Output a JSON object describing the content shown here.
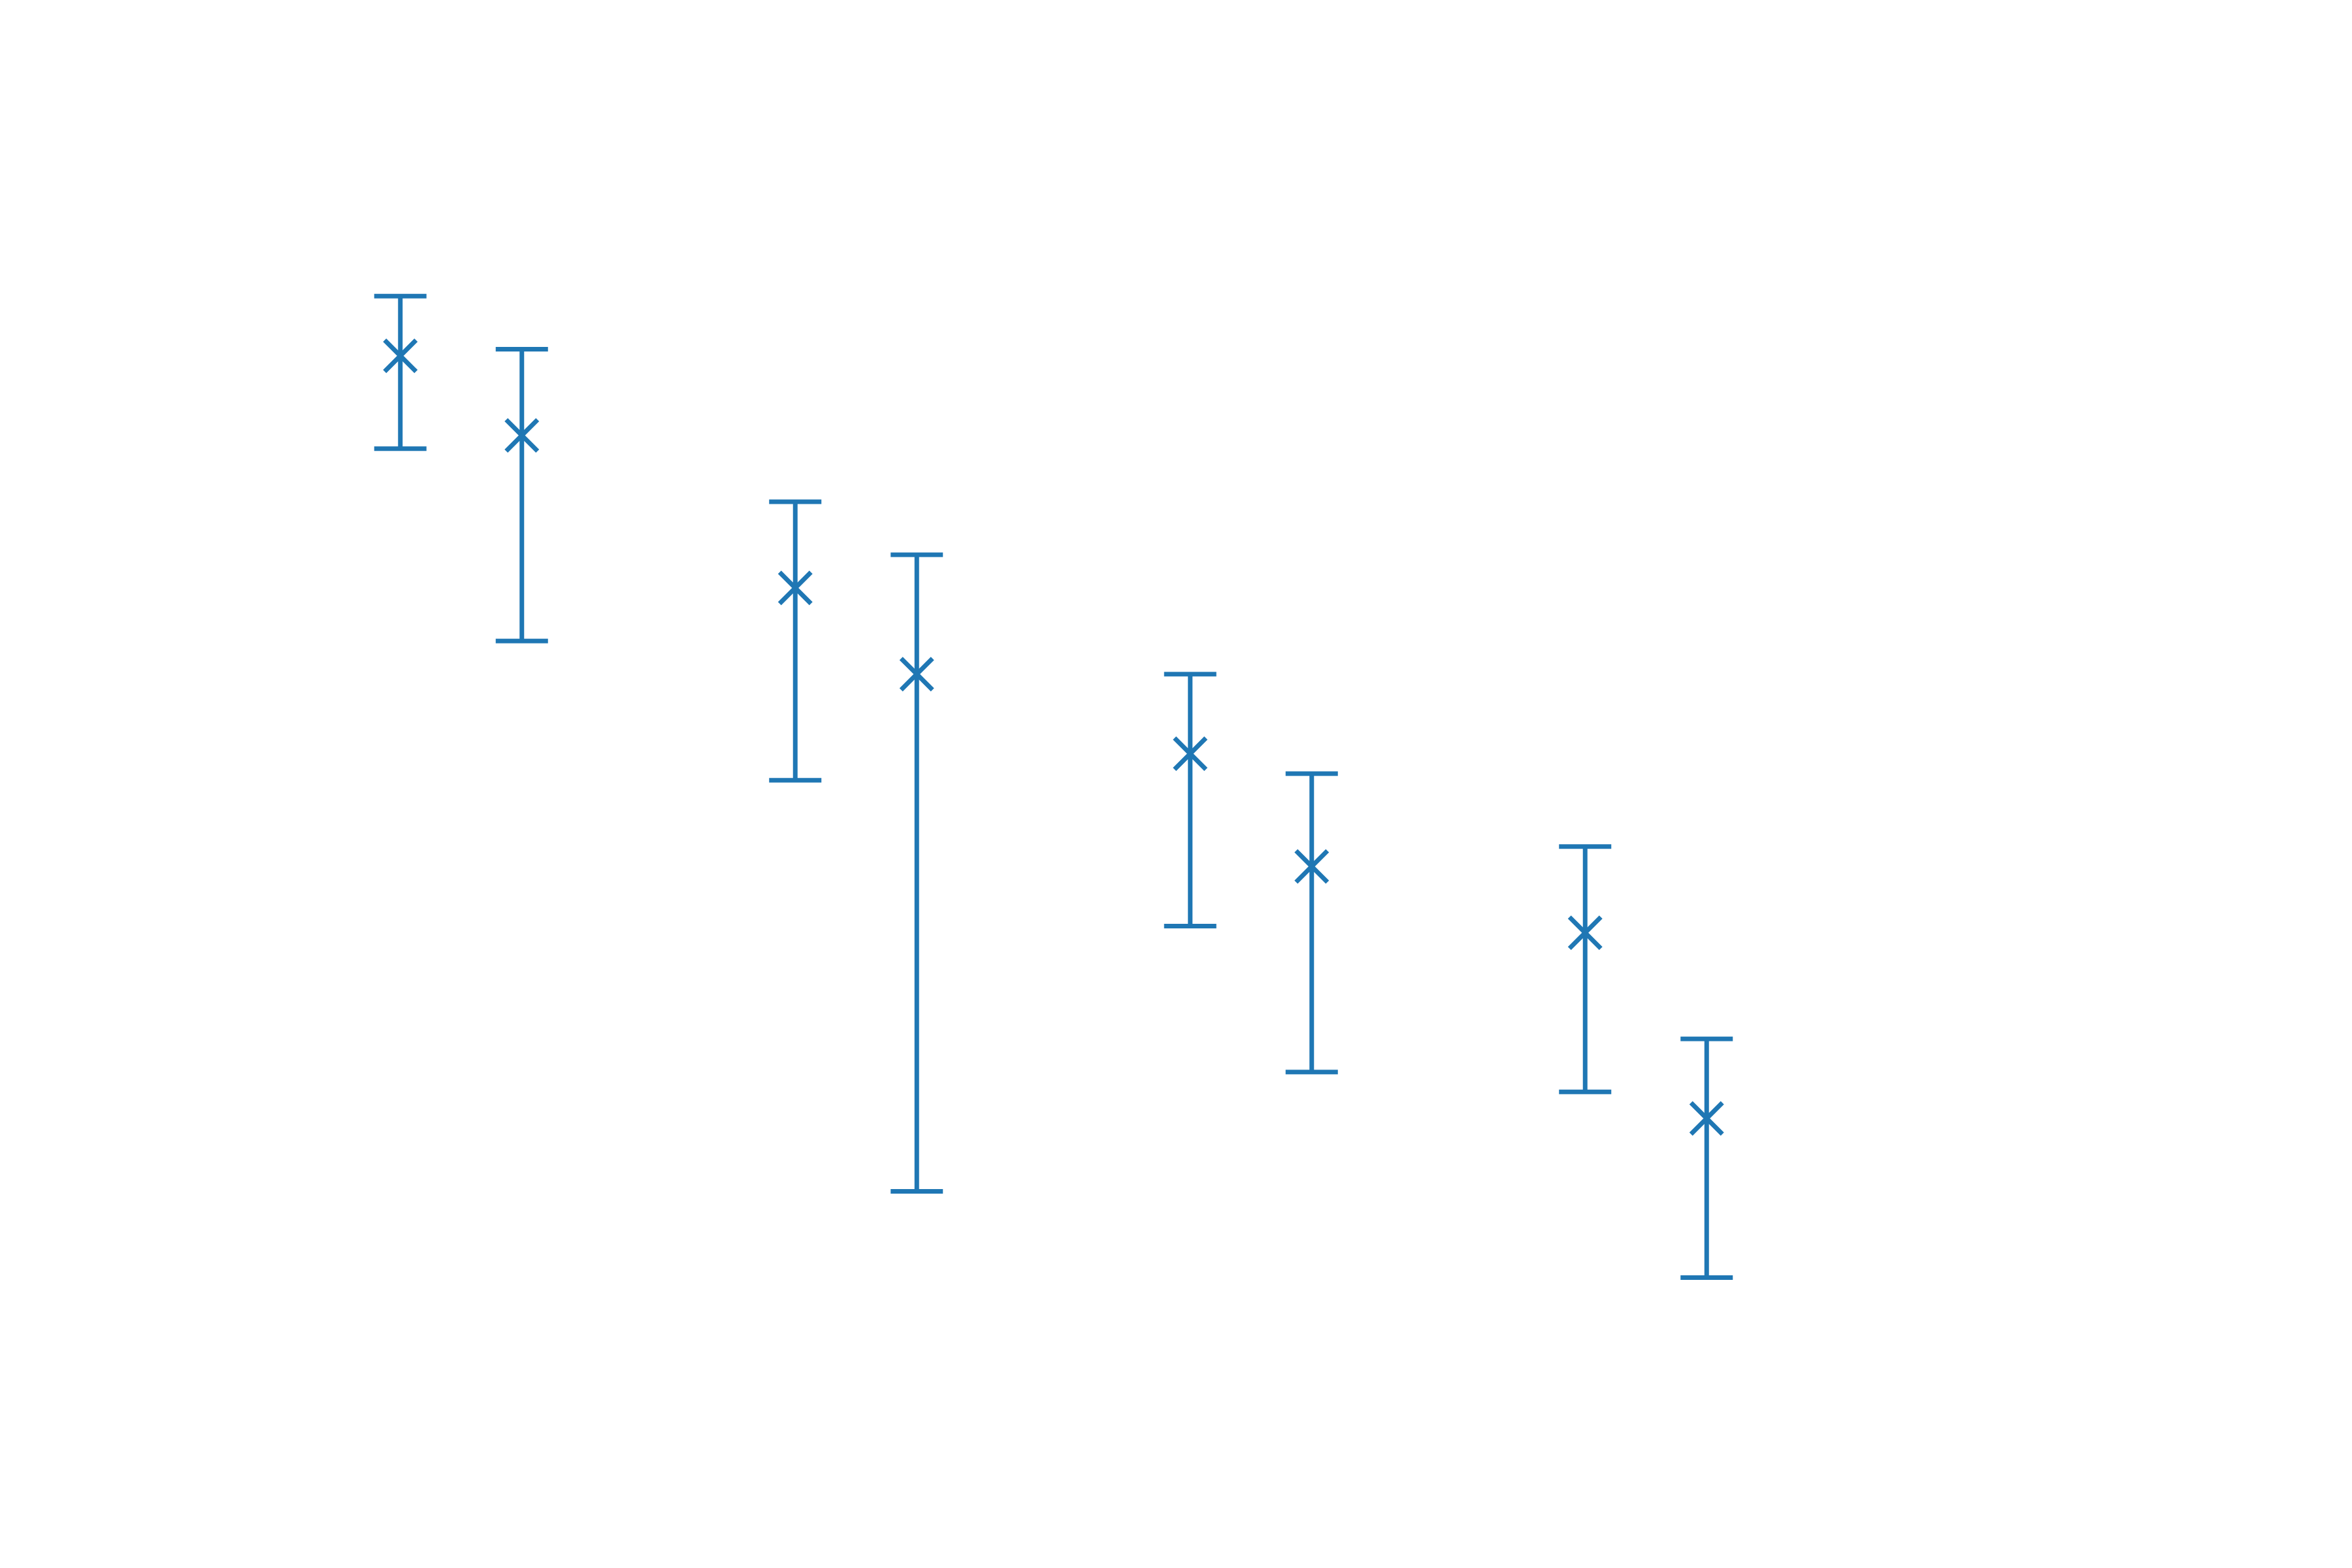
{
  "chart_data": {
    "type": "errorbar",
    "title": "",
    "xlabel": "",
    "ylabel": "",
    "axes_visible": false,
    "grid": false,
    "color": "#1f77b4",
    "marker": "x-icon",
    "xlim": [
      0.5,
      12.5
    ],
    "ylim": [
      0,
      10
    ],
    "points": [
      {
        "x": 1.2,
        "y": 8.45,
        "y_low": 7.75,
        "y_high": 8.9
      },
      {
        "x": 2.0,
        "y": 7.85,
        "y_low": 6.3,
        "y_high": 8.5
      },
      {
        "x": 3.8,
        "y": 6.7,
        "y_low": 5.25,
        "y_high": 7.35
      },
      {
        "x": 4.6,
        "y": 6.05,
        "y_low": 2.15,
        "y_high": 6.95
      },
      {
        "x": 6.4,
        "y": 5.45,
        "y_low": 4.15,
        "y_high": 6.05
      },
      {
        "x": 7.2,
        "y": 4.6,
        "y_low": 3.05,
        "y_high": 5.3
      },
      {
        "x": 9.0,
        "y": 4.1,
        "y_low": 2.9,
        "y_high": 4.75
      },
      {
        "x": 9.8,
        "y": 2.7,
        "y_low": 1.5,
        "y_high": 3.3
      }
    ]
  }
}
